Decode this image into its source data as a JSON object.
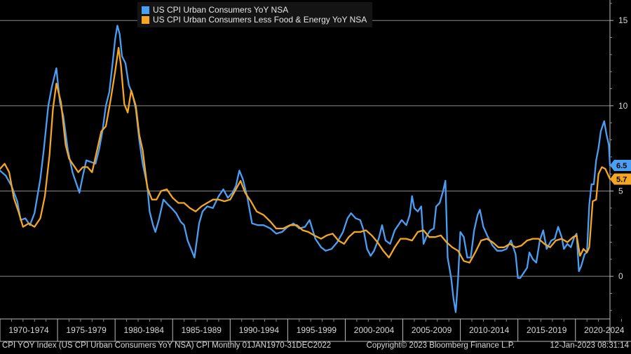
{
  "legend": {
    "series1": "US CPI Urban Consumers YoY NSA",
    "series2": "US CPI Urban Consumers Less Food & Energy YoY NSA"
  },
  "footer": {
    "left": "CPI YOY Index (US CPI Urban Consumers YoY NSA) CPI  Monthly 01JAN1970-31DEC2022",
    "center": "Copyright© 2023 Bloomberg Finance L.P.",
    "right": "12-Jan-2023 08:31:14"
  },
  "colors": {
    "series1": "#4a9ff5",
    "series2": "#f5a623",
    "grid": "#8a8a8a",
    "background": "#000000"
  },
  "chart_data": {
    "type": "line",
    "x_range": [
      1970.0,
      2023.0
    ],
    "ylim": [
      -2.5,
      16.2
    ],
    "y_ticks": [
      0,
      5,
      10,
      15
    ],
    "x_tick_labels": [
      "1970-1974",
      "1975-1979",
      "1980-1984",
      "1985-1989",
      "1990-1994",
      "1995-1999",
      "2000-2004",
      "2005-2009",
      "2010-2014",
      "2015-2019",
      "2020-2024"
    ],
    "last_value_tags": [
      "6.5",
      "5.7"
    ],
    "grid": true,
    "series": [
      {
        "name": "US CPI Urban Consumers YoY NSA",
        "x": [
          1970.0,
          1970.5,
          1971.0,
          1971.5,
          1971.8,
          1972.2,
          1972.6,
          1973.0,
          1973.5,
          1973.8,
          1974.2,
          1974.5,
          1974.9,
          1975.2,
          1975.5,
          1975.9,
          1976.3,
          1976.6,
          1976.9,
          1977.2,
          1977.5,
          1977.9,
          1978.3,
          1978.6,
          1978.9,
          1979.2,
          1979.5,
          1979.8,
          1980.0,
          1980.2,
          1980.4,
          1980.6,
          1980.9,
          1981.2,
          1981.5,
          1981.8,
          1982.1,
          1982.4,
          1982.8,
          1983.0,
          1983.3,
          1983.5,
          1983.8,
          1984.2,
          1984.6,
          1984.9,
          1985.3,
          1985.7,
          1986.0,
          1986.3,
          1986.6,
          1986.9,
          1987.3,
          1987.6,
          1988.0,
          1988.5,
          1989.0,
          1989.4,
          1989.8,
          1990.2,
          1990.5,
          1990.8,
          1991.1,
          1991.5,
          1991.9,
          1992.4,
          1992.9,
          1993.5,
          1994.0,
          1994.5,
          1995.0,
          1995.5,
          1996.0,
          1996.5,
          1996.9,
          1997.4,
          1997.9,
          1998.3,
          1998.8,
          1999.3,
          1999.8,
          2000.2,
          2000.5,
          2000.9,
          2001.3,
          2001.6,
          2001.9,
          2002.2,
          2002.5,
          2002.9,
          2003.2,
          2003.5,
          2003.9,
          2004.3,
          2004.6,
          2004.9,
          2005.3,
          2005.6,
          2005.8,
          2006.0,
          2006.3,
          2006.6,
          2006.8,
          2007.1,
          2007.4,
          2007.7,
          2007.9,
          2008.2,
          2008.5,
          2008.7,
          2008.9,
          2009.2,
          2009.4,
          2009.6,
          2009.8,
          2010.0,
          2010.3,
          2010.6,
          2010.9,
          2011.2,
          2011.5,
          2011.7,
          2012.0,
          2012.4,
          2012.8,
          2013.2,
          2013.6,
          2014.0,
          2014.4,
          2014.8,
          2015.0,
          2015.2,
          2015.5,
          2015.8,
          2016.0,
          2016.3,
          2016.6,
          2016.9,
          2017.2,
          2017.5,
          2017.9,
          2018.2,
          2018.5,
          2018.8,
          2019.0,
          2019.3,
          2019.6,
          2019.9,
          2020.1,
          2020.3,
          2020.5,
          2020.8,
          2021.0,
          2021.2,
          2021.4,
          2021.6,
          2021.8,
          2022.0,
          2022.2,
          2022.5,
          2022.7,
          2022.9,
          2023.0
        ],
        "y": [
          6.2,
          5.9,
          5.3,
          4.4,
          3.3,
          3.4,
          3.0,
          3.7,
          5.7,
          7.4,
          10.0,
          11.1,
          12.2,
          10.2,
          9.4,
          7.4,
          6.1,
          5.5,
          4.9,
          5.9,
          6.8,
          6.7,
          6.6,
          7.4,
          8.5,
          10.0,
          10.8,
          12.6,
          13.9,
          14.7,
          14.2,
          12.9,
          12.5,
          11.2,
          10.7,
          9.8,
          8.0,
          6.6,
          5.3,
          3.8,
          3.0,
          2.6,
          3.3,
          4.5,
          4.2,
          4.0,
          3.7,
          3.2,
          3.0,
          2.1,
          1.6,
          1.1,
          3.1,
          3.8,
          4.1,
          4.0,
          4.7,
          5.1,
          4.6,
          4.9,
          5.3,
          6.2,
          5.7,
          4.6,
          3.1,
          3.0,
          3.0,
          2.8,
          2.5,
          2.6,
          2.9,
          3.1,
          2.8,
          2.9,
          3.3,
          2.2,
          1.7,
          1.5,
          1.6,
          2.0,
          2.6,
          3.4,
          3.7,
          3.4,
          3.3,
          2.7,
          1.6,
          1.2,
          1.5,
          2.2,
          3.0,
          2.1,
          1.9,
          2.7,
          3.0,
          3.3,
          3.0,
          3.6,
          4.7,
          4.0,
          3.8,
          4.1,
          1.9,
          2.4,
          2.7,
          2.8,
          4.1,
          4.3,
          5.0,
          5.6,
          1.1,
          -0.1,
          -1.3,
          -2.1,
          -0.2,
          2.6,
          2.3,
          1.1,
          1.1,
          2.7,
          3.6,
          3.9,
          2.9,
          2.3,
          1.8,
          1.5,
          1.5,
          1.6,
          2.1,
          1.3,
          -0.1,
          -0.1,
          0.2,
          0.5,
          1.4,
          1.0,
          0.8,
          2.1,
          2.7,
          1.6,
          2.1,
          2.2,
          2.9,
          2.3,
          1.6,
          1.9,
          1.7,
          2.3,
          2.5,
          0.3,
          0.6,
          1.3,
          1.4,
          4.2,
          5.4,
          5.4,
          6.8,
          7.5,
          8.5,
          9.1,
          8.3,
          7.7,
          6.5
        ]
      },
      {
        "name": "US CPI Urban Consumers Less Food & Energy YoY NSA",
        "x": [
          1970.0,
          1970.4,
          1970.8,
          1971.2,
          1971.6,
          1972.0,
          1972.5,
          1973.0,
          1973.5,
          1973.9,
          1974.3,
          1974.6,
          1974.9,
          1975.3,
          1975.7,
          1976.0,
          1976.4,
          1976.8,
          1977.2,
          1977.6,
          1978.0,
          1978.4,
          1978.8,
          1979.2,
          1979.6,
          1980.0,
          1980.3,
          1980.5,
          1980.8,
          1981.1,
          1981.4,
          1981.8,
          1982.1,
          1982.4,
          1982.8,
          1983.2,
          1983.6,
          1984.0,
          1984.5,
          1985.0,
          1985.5,
          1986.0,
          1986.5,
          1987.0,
          1987.5,
          1988.0,
          1988.5,
          1989.0,
          1989.5,
          1990.0,
          1990.5,
          1990.9,
          1991.3,
          1991.8,
          1992.3,
          1992.9,
          1993.5,
          1994.0,
          1994.6,
          1995.2,
          1995.8,
          1996.3,
          1996.8,
          1997.3,
          1997.9,
          1998.4,
          1998.9,
          1999.4,
          1999.9,
          2000.3,
          2000.8,
          2001.3,
          2001.8,
          2002.3,
          2002.8,
          2003.3,
          2003.8,
          2004.3,
          2004.8,
          2005.3,
          2005.8,
          2006.3,
          2006.8,
          2007.3,
          2007.8,
          2008.3,
          2008.8,
          2009.3,
          2009.8,
          2010.3,
          2010.8,
          2011.3,
          2011.8,
          2012.3,
          2012.8,
          2013.3,
          2013.8,
          2014.3,
          2014.8,
          2015.3,
          2015.8,
          2016.3,
          2016.8,
          2017.3,
          2017.8,
          2018.3,
          2018.8,
          2019.3,
          2019.8,
          2020.1,
          2020.4,
          2020.7,
          2021.0,
          2021.2,
          2021.5,
          2021.8,
          2022.0,
          2022.3,
          2022.6,
          2022.8,
          2023.0
        ],
        "y": [
          6.3,
          6.6,
          6.1,
          4.6,
          3.8,
          2.9,
          3.1,
          2.9,
          3.4,
          4.7,
          7.1,
          9.8,
          11.3,
          10.2,
          7.7,
          6.9,
          6.5,
          6.1,
          6.4,
          6.4,
          6.1,
          7.3,
          8.5,
          8.8,
          10.3,
          12.0,
          13.4,
          12.4,
          10.1,
          9.6,
          10.9,
          10.0,
          8.3,
          7.4,
          5.2,
          4.5,
          4.5,
          5.0,
          5.1,
          4.6,
          4.3,
          4.3,
          4.0,
          3.8,
          4.1,
          4.3,
          4.5,
          4.5,
          4.4,
          4.5,
          5.1,
          5.6,
          4.9,
          4.4,
          3.8,
          3.6,
          3.2,
          2.8,
          2.8,
          3.0,
          3.0,
          2.7,
          2.6,
          2.4,
          2.2,
          2.4,
          2.5,
          2.1,
          1.9,
          2.3,
          2.6,
          2.6,
          2.7,
          2.4,
          2.0,
          1.5,
          1.1,
          1.7,
          2.2,
          2.2,
          2.1,
          2.6,
          2.7,
          2.3,
          2.3,
          2.4,
          2.0,
          1.7,
          1.5,
          0.9,
          0.8,
          1.4,
          2.1,
          2.2,
          2.0,
          1.7,
          1.7,
          1.9,
          1.7,
          1.8,
          2.1,
          2.2,
          2.2,
          1.9,
          1.7,
          2.1,
          2.2,
          2.0,
          2.3,
          2.4,
          1.2,
          1.6,
          1.4,
          1.7,
          4.4,
          4.5,
          6.0,
          6.4,
          6.3,
          6.0,
          5.7
        ]
      }
    ]
  }
}
